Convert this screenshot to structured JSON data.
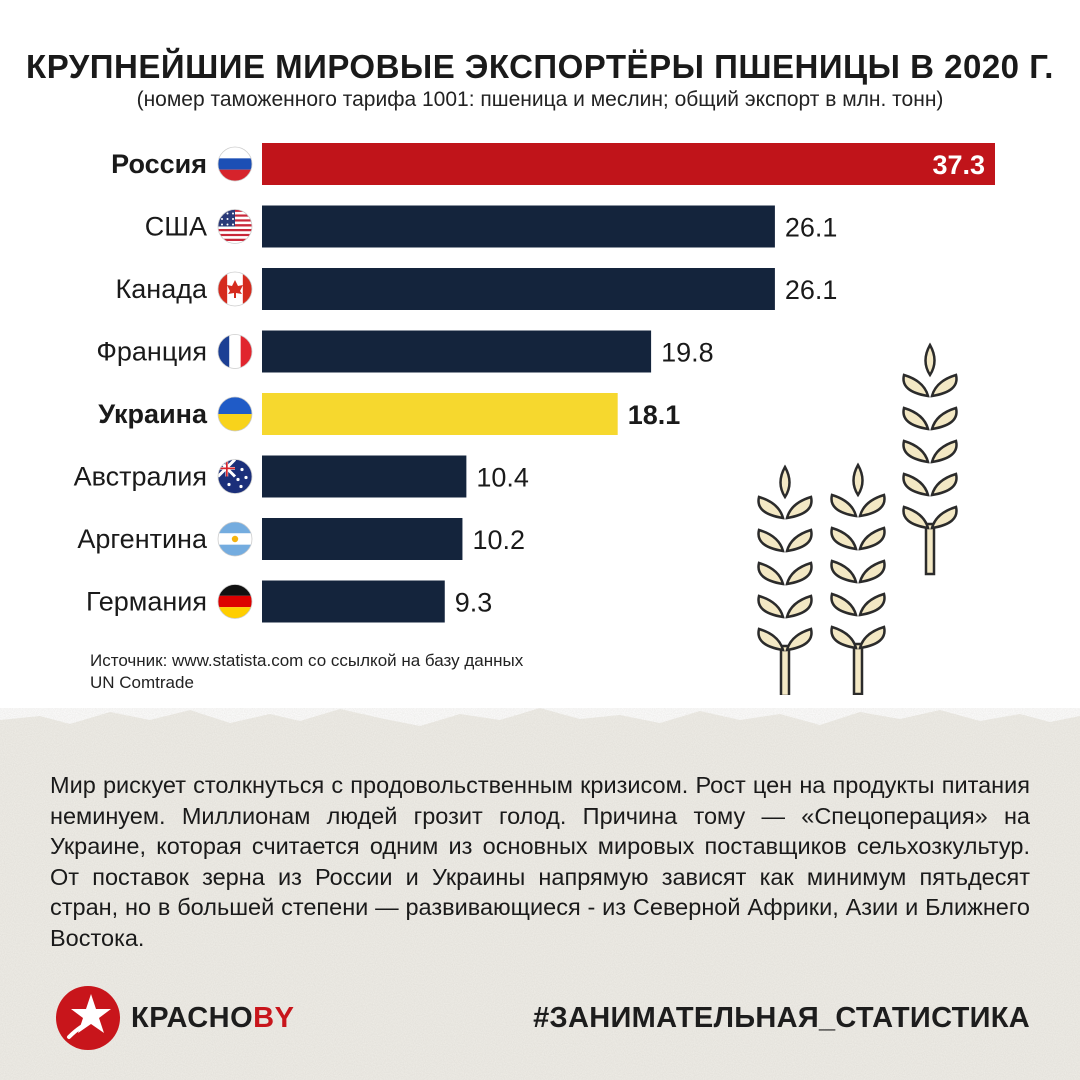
{
  "title": "КРУПНЕЙШИЕ МИРОВЫЕ ЭКСПОРТЁРЫ ПШЕНИЦЫ В 2020 Г.",
  "subtitle": "(номер таможенного тарифа 1001: пшеница и меслин; общий экспорт в млн. тонн)",
  "chart_data": {
    "type": "bar",
    "orientation": "horizontal",
    "title": "КРУПНЕЙШИЕ МИРОВЫЕ ЭКСПОРТЁРЫ ПШЕНИЦЫ В 2020 Г.",
    "subtitle": "(номер таможенного тарифа 1001: пшеница и меслин; общий экспорт в млн. тонн)",
    "categories": [
      "Россия",
      "США",
      "Канада",
      "Франция",
      "Украина",
      "Австралия",
      "Аргентина",
      "Германия"
    ],
    "values": [
      37.3,
      26.1,
      26.1,
      19.8,
      18.1,
      10.4,
      10.2,
      9.3
    ],
    "value_labels": [
      "37.3",
      "26.1",
      "26.1",
      "19.8",
      "18.1",
      "10.4",
      "10.2",
      "9.3"
    ],
    "highlighted": [
      "Россия",
      "Украина"
    ],
    "bar_colors": [
      "#c0141a",
      "#14243c",
      "#14243c",
      "#14243c",
      "#f6d82e",
      "#14243c",
      "#14243c",
      "#14243c"
    ],
    "flags": [
      "russia-flag-icon",
      "usa-flag-icon",
      "canada-flag-icon",
      "france-flag-icon",
      "ukraine-flag-icon",
      "australia-flag-icon",
      "argentina-flag-icon",
      "germany-flag-icon"
    ],
    "xlim": [
      0,
      37.3
    ],
    "grid": false,
    "xlabel": "",
    "ylabel": ""
  },
  "source": "Источник: www.statista.com со ссылкой на базу данных UN Comtrade",
  "body_text": "Мир рискует столкнуться с продовольственным кризисом. Рост цен на про­дукты питания неминуем. Миллионам людей грозит голод. Причина тому — «Спецоперация» на Украине, которая считается одним из основных миро­вых поставщиков сельхозкультур. От поставок зерна из России и Украины напрямую зависят как минимум пятьдесят стран, но в большей степени — развивающиеся - из Северной Африки, Азии и Ближнего Востока.",
  "logo": {
    "part1": "КРАСНО",
    "part2": "BY"
  },
  "hashtag": "#ЗАНИМАТЕЛЬНАЯ_СТАТИСТИКА",
  "colors": {
    "accent": "#c8151b",
    "navy": "#14243c",
    "yellow": "#f6d82e",
    "wheat": "#f3e8c4",
    "wheat_outline": "#2b2b2b"
  }
}
